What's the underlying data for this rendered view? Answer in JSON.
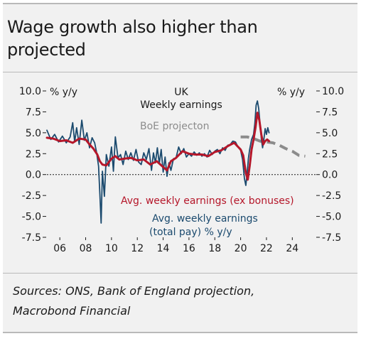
{
  "title_lines": [
    "Wage growth also higher than",
    "projected"
  ],
  "source_lines": [
    "Sources: ONS, Bank of England projection,",
    "Macrobond Financial"
  ],
  "chart_data": {
    "type": "line",
    "left_axis_label": "% y/y",
    "right_axis_label": "% y/y",
    "top_labels": [
      "UK",
      "Weekly earnings"
    ],
    "ylim": [
      -7.5,
      10.0
    ],
    "y_ticks": [
      10.0,
      7.5,
      5.0,
      2.5,
      0.0,
      -2.5,
      -5.0,
      -7.5
    ],
    "y_tick_labels": [
      "10.0",
      "7.5",
      "5.0",
      "2.5",
      "0.0",
      "-2.5",
      "-5.0",
      "-7.5"
    ],
    "xlim": [
      2005,
      2025.8
    ],
    "x_ticks": [
      2006,
      2008,
      2010,
      2012,
      2014,
      2016,
      2018,
      2020,
      2022,
      2024
    ],
    "x_tick_labels": [
      "06",
      "08",
      "10",
      "12",
      "14",
      "16",
      "18",
      "20",
      "22",
      "24"
    ],
    "zero_line": "dashed",
    "colors": {
      "total_pay": "#1b4a6e",
      "ex_bonus": "#b5172a",
      "boe_projection": "#8c8c8c",
      "axis_text": "#1a1a1a",
      "card_background": "#f1f1f1"
    },
    "annotations": {
      "boe_projection": "BoE projecton",
      "ex_bonus": "Avg. weekly earnings (ex bonuses)",
      "total_pay": [
        "Avg. weekly earnings",
        "(total pay) % y/y"
      ]
    },
    "series": [
      {
        "name": "Avg. weekly earnings (total pay) % y/y",
        "key": "total_pay",
        "x": [
          2005.0,
          2005.3,
          2005.6,
          2005.9,
          2006.2,
          2006.5,
          2006.8,
          2007.0,
          2007.15,
          2007.3,
          2007.5,
          2007.7,
          2007.9,
          2008.1,
          2008.3,
          2008.5,
          2008.7,
          2008.85,
          2009.0,
          2009.1,
          2009.2,
          2009.3,
          2009.45,
          2009.6,
          2009.8,
          2010.0,
          2010.15,
          2010.3,
          2010.5,
          2010.7,
          2010.9,
          2011.1,
          2011.3,
          2011.5,
          2011.7,
          2011.9,
          2012.1,
          2012.3,
          2012.5,
          2012.7,
          2012.9,
          2013.1,
          2013.25,
          2013.4,
          2013.55,
          2013.7,
          2013.85,
          2014.0,
          2014.15,
          2014.3,
          2014.45,
          2014.6,
          2014.8,
          2015.0,
          2015.2,
          2015.4,
          2015.6,
          2015.8,
          2016.0,
          2016.2,
          2016.4,
          2016.6,
          2016.8,
          2017.0,
          2017.2,
          2017.4,
          2017.6,
          2017.8,
          2018.0,
          2018.2,
          2018.4,
          2018.6,
          2018.8,
          2019.0,
          2019.2,
          2019.4,
          2019.6,
          2019.8,
          2020.0,
          2020.15,
          2020.3,
          2020.4,
          2020.5,
          2020.6,
          2020.7,
          2020.85,
          2021.0,
          2021.1,
          2021.2,
          2021.3,
          2021.4,
          2021.5,
          2021.6,
          2021.7,
          2021.8,
          2021.9,
          2022.0,
          2022.1,
          2022.2
        ],
        "y": [
          5.3,
          4.2,
          4.8,
          3.9,
          4.6,
          3.8,
          4.5,
          6.2,
          3.9,
          5.6,
          3.6,
          6.5,
          4.1,
          5.0,
          3.2,
          4.4,
          3.8,
          2.6,
          1.0,
          -2.3,
          -5.8,
          0.4,
          -2.6,
          2.4,
          1.0,
          3.3,
          0.4,
          4.5,
          2.0,
          2.4,
          1.2,
          2.8,
          1.8,
          2.6,
          1.7,
          3.0,
          1.5,
          1.2,
          2.6,
          1.8,
          3.1,
          0.5,
          2.6,
          1.4,
          3.2,
          1.3,
          3.0,
          0.3,
          2.1,
          -0.2,
          1.4,
          0.5,
          1.9,
          2.0,
          3.3,
          2.5,
          3.1,
          2.1,
          2.5,
          2.2,
          2.7,
          2.3,
          2.6,
          2.2,
          2.5,
          2.1,
          2.9,
          2.4,
          2.8,
          3.0,
          2.5,
          3.2,
          2.9,
          3.5,
          3.6,
          4.0,
          3.9,
          3.3,
          2.9,
          1.8,
          -0.5,
          -1.3,
          0.1,
          1.9,
          3.0,
          4.2,
          4.8,
          6.1,
          8.3,
          8.8,
          7.9,
          6.1,
          4.3,
          3.2,
          4.2,
          5.5,
          4.8,
          5.6,
          5.0
        ]
      },
      {
        "name": "Avg. weekly earnings (ex bonuses)",
        "key": "ex_bonus",
        "x": [
          2005.0,
          2005.5,
          2006.0,
          2006.5,
          2007.0,
          2007.5,
          2008.0,
          2008.3,
          2008.6,
          2008.9,
          2009.1,
          2009.3,
          2009.6,
          2010.0,
          2010.3,
          2010.6,
          2011.0,
          2011.5,
          2012.0,
          2012.5,
          2013.0,
          2013.5,
          2014.0,
          2014.3,
          2014.6,
          2015.0,
          2015.5,
          2016.0,
          2016.5,
          2017.0,
          2017.5,
          2018.0,
          2018.5,
          2019.0,
          2019.5,
          2020.0,
          2020.2,
          2020.4,
          2020.55,
          2020.7,
          2020.85,
          2021.0,
          2021.15,
          2021.3,
          2021.45,
          2021.6,
          2021.75,
          2021.9,
          2022.05,
          2022.2
        ],
        "y": [
          4.4,
          4.3,
          4.0,
          4.1,
          3.8,
          4.3,
          4.2,
          3.6,
          3.1,
          2.4,
          1.6,
          1.2,
          1.1,
          1.9,
          2.2,
          1.8,
          1.9,
          2.0,
          1.7,
          1.8,
          1.2,
          1.6,
          0.9,
          0.5,
          1.6,
          2.0,
          2.8,
          2.5,
          2.4,
          2.4,
          2.2,
          2.7,
          2.9,
          3.4,
          3.8,
          3.0,
          2.3,
          0.2,
          -0.6,
          1.0,
          3.0,
          4.2,
          5.6,
          7.4,
          6.5,
          4.8,
          3.6,
          4.0,
          4.2,
          4.0
        ]
      },
      {
        "name": "BoE projecton",
        "key": "boe_projection",
        "dash": true,
        "x": [
          2020.0,
          2020.5,
          2021.0,
          2021.5,
          2022.0,
          2022.5,
          2023.0,
          2023.5,
          2024.0,
          2024.5,
          2025.0
        ],
        "y": [
          4.5,
          4.5,
          4.3,
          4.0,
          3.9,
          3.8,
          3.5,
          3.1,
          2.8,
          2.3,
          2.2
        ]
      }
    ]
  }
}
